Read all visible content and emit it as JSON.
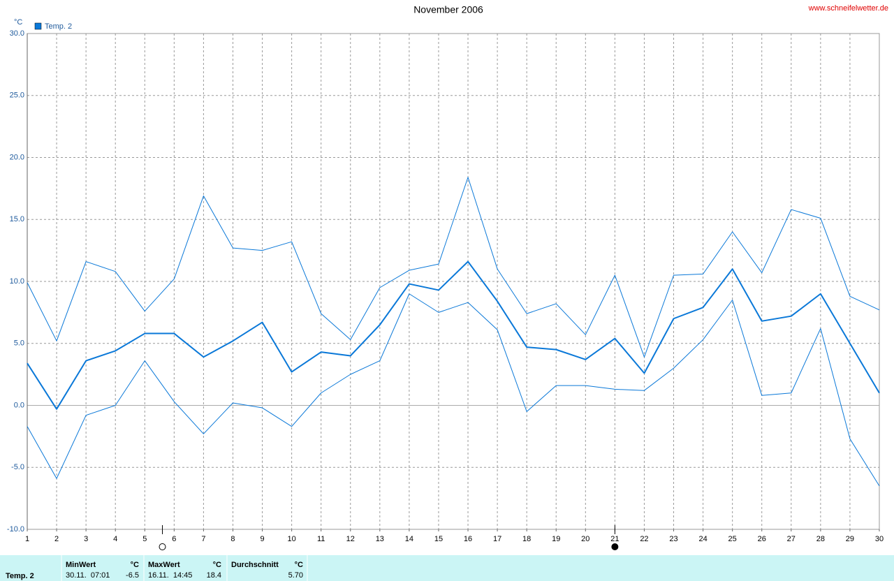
{
  "chart_data": {
    "type": "line",
    "title": "November 2006",
    "source": "www.schneifelwetter.de",
    "y_unit": "°C",
    "x": [
      1,
      2,
      3,
      4,
      5,
      6,
      7,
      8,
      9,
      10,
      11,
      12,
      13,
      14,
      15,
      16,
      17,
      18,
      19,
      20,
      21,
      22,
      23,
      24,
      25,
      26,
      27,
      28,
      29,
      30
    ],
    "xlim": [
      1,
      30
    ],
    "xticks": [
      1,
      2,
      3,
      4,
      5,
      6,
      7,
      8,
      9,
      10,
      11,
      12,
      13,
      14,
      15,
      16,
      17,
      18,
      19,
      20,
      21,
      22,
      23,
      24,
      25,
      26,
      27,
      28,
      29,
      30
    ],
    "ylim": [
      -10,
      30
    ],
    "yticks": [
      {
        "value": -10,
        "label": "-10.0"
      },
      {
        "value": -5,
        "label": "-5.0"
      },
      {
        "value": 0,
        "label": "0.0"
      },
      {
        "value": 5,
        "label": "5.0"
      },
      {
        "value": 10,
        "label": "10.0"
      },
      {
        "value": 15,
        "label": "15.0"
      },
      {
        "value": 20,
        "label": "20.0"
      },
      {
        "value": 25,
        "label": "25.0"
      },
      {
        "value": 30,
        "label": "30.0"
      }
    ],
    "grid": true,
    "zero_line": true,
    "legend": "top-left",
    "series": [
      {
        "name": "Temp. 2",
        "color": "#0a78d8",
        "line_width": 2,
        "values": [
          3.4,
          -0.3,
          3.6,
          4.4,
          5.8,
          5.8,
          3.9,
          5.2,
          6.7,
          2.7,
          4.3,
          4.0,
          6.5,
          9.8,
          9.3,
          11.6,
          8.4,
          4.7,
          4.5,
          3.7,
          5.4,
          2.6,
          7.0,
          7.9,
          11.0,
          6.8,
          7.2,
          9.0,
          5.0,
          1.0
        ]
      },
      {
        "color": "#0a78d8",
        "line_width": 1,
        "values": [
          9.9,
          5.2,
          11.6,
          10.8,
          7.6,
          10.2,
          16.9,
          12.7,
          12.5,
          13.2,
          7.4,
          5.3,
          9.5,
          10.9,
          11.4,
          18.4,
          11.0,
          7.4,
          8.2,
          5.7,
          10.5,
          3.9,
          10.5,
          10.6,
          14.0,
          10.7,
          15.8,
          15.1,
          8.8,
          7.7
        ]
      },
      {
        "color": "#0a78d8",
        "line_width": 1,
        "values": [
          -1.7,
          -5.9,
          -0.8,
          0.0,
          3.6,
          0.3,
          -2.3,
          0.2,
          -0.2,
          -1.7,
          1.0,
          2.5,
          3.6,
          9.0,
          7.5,
          8.3,
          6.1,
          -0.5,
          1.6,
          1.6,
          1.3,
          1.2,
          3.0,
          5.3,
          8.5,
          0.8,
          1.0,
          6.2,
          -2.7,
          -6.5
        ]
      }
    ],
    "moon_markers": [
      {
        "x": 5.6,
        "filled": false
      },
      {
        "x": 21,
        "filled": true
      }
    ]
  },
  "stats_table": {
    "series": "Temp. 2",
    "headers": [
      "MinWert",
      "°C",
      "MaxWert",
      "°C",
      "Durchschnitt",
      "°C"
    ],
    "row": [
      "30.11.  07:01",
      "-6.5",
      "16.11.  14:45",
      "18.4",
      "",
      "5.70"
    ]
  }
}
